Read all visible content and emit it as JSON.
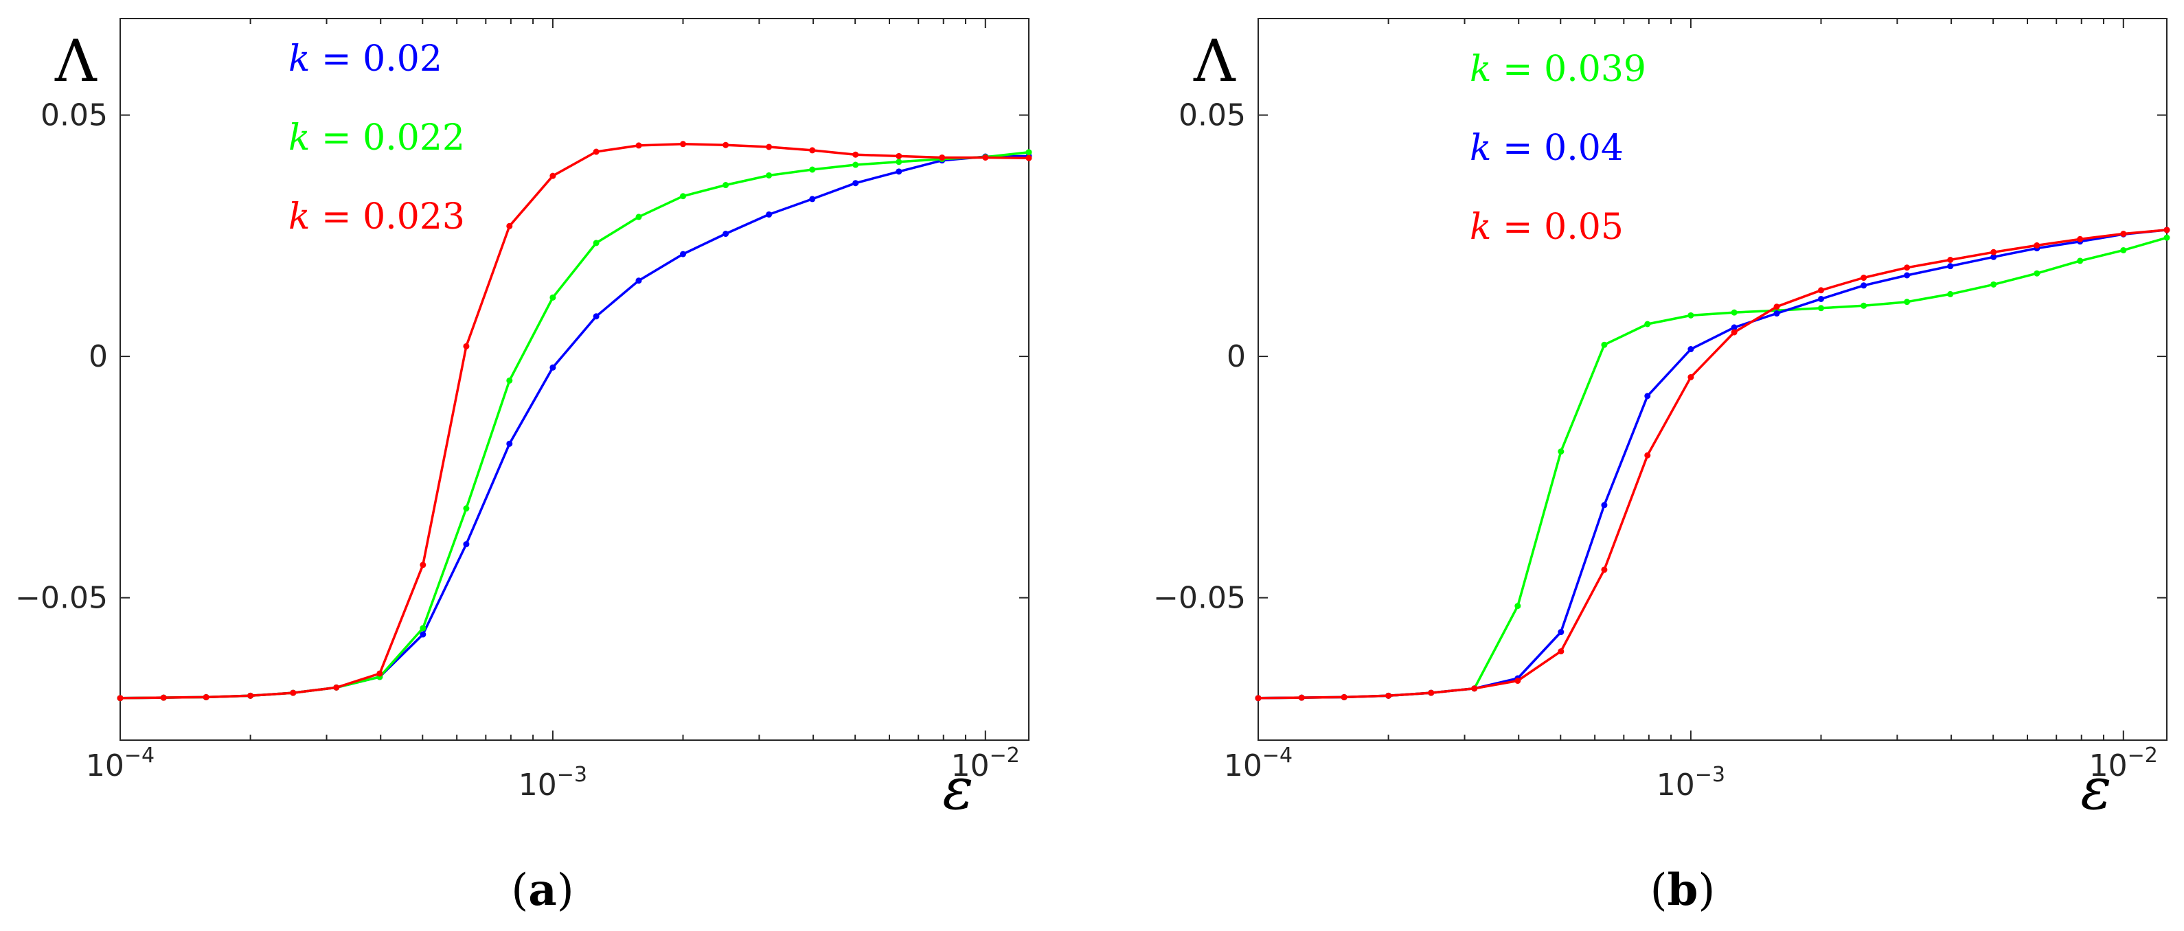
{
  "figure": {
    "panels": [
      {
        "label_open": "(",
        "label_letter": "a",
        "label_close": ")"
      },
      {
        "label_open": "(",
        "label_letter": "b",
        "label_close": ")"
      }
    ]
  },
  "chart_data": [
    {
      "type": "line",
      "panel": "a",
      "xlabel": "ε",
      "ylabel": "Λ",
      "xscale": "log",
      "xlim": [
        0.0001,
        0.0126
      ],
      "ylim": [
        -0.0795,
        0.07
      ],
      "xticks": [
        {
          "value": 0.0001,
          "base": "10",
          "exp": "−4"
        },
        {
          "value": 0.001,
          "base": "10",
          "exp": "−3"
        },
        {
          "value": 0.01,
          "base": "10",
          "exp": "−2"
        }
      ],
      "yticks": [
        {
          "value": 0.05,
          "label": "0.05"
        },
        {
          "value": 0,
          "label": "0"
        },
        {
          "value": -0.05,
          "label": "−0.05"
        }
      ],
      "legend_position": "top-left",
      "x": [
        0.0001,
        0.000126,
        0.000158,
        0.0002,
        0.000251,
        0.000316,
        0.000398,
        0.000501,
        0.000631,
        0.000794,
        0.001,
        0.00126,
        0.00158,
        0.002,
        0.00251,
        0.00316,
        0.00398,
        0.00501,
        0.00631,
        0.00794,
        0.01,
        0.0126
      ],
      "series": [
        {
          "name": "k = 0.02",
          "k_symbol": "k",
          "k_eq": " = 0.02",
          "color": "#0000ff",
          "values": [
            -0.0708,
            -0.0707,
            -0.0706,
            -0.0703,
            -0.0697,
            -0.0686,
            -0.0664,
            -0.0576,
            -0.0389,
            -0.0181,
            -0.0023,
            0.0083,
            0.0157,
            0.0212,
            0.0254,
            0.0294,
            0.0326,
            0.0359,
            0.0383,
            0.0406,
            0.0414,
            0.0415
          ]
        },
        {
          "name": "k = 0.022",
          "k_symbol": "k",
          "k_eq": " = 0.022",
          "color": "#00ff00",
          "values": [
            -0.0708,
            -0.0707,
            -0.0706,
            -0.0703,
            -0.0697,
            -0.0686,
            -0.0664,
            -0.0563,
            -0.0315,
            -0.005,
            0.0122,
            0.0235,
            0.0289,
            0.0332,
            0.0355,
            0.0375,
            0.0387,
            0.0397,
            0.0403,
            0.0409,
            0.0413,
            0.0423
          ]
        },
        {
          "name": "k = 0.023",
          "k_symbol": "k",
          "k_eq": " = 0.023",
          "color": "#ff0000",
          "values": [
            -0.0708,
            -0.0707,
            -0.0706,
            -0.0703,
            -0.0697,
            -0.0686,
            -0.0657,
            -0.0432,
            0.0021,
            0.027,
            0.0374,
            0.0424,
            0.0437,
            0.044,
            0.0438,
            0.0434,
            0.0427,
            0.0418,
            0.0415,
            0.0412,
            0.0412,
            0.0411
          ]
        }
      ]
    },
    {
      "type": "line",
      "panel": "b",
      "xlabel": "ε",
      "ylabel": "Λ",
      "xscale": "log",
      "xlim": [
        0.0001,
        0.0126
      ],
      "ylim": [
        -0.0795,
        0.07
      ],
      "xticks": [
        {
          "value": 0.0001,
          "base": "10",
          "exp": "−4"
        },
        {
          "value": 0.001,
          "base": "10",
          "exp": "−3"
        },
        {
          "value": 0.01,
          "base": "10",
          "exp": "−2"
        }
      ],
      "yticks": [
        {
          "value": 0.05,
          "label": "0.05"
        },
        {
          "value": 0,
          "label": "0"
        },
        {
          "value": -0.05,
          "label": "−0.05"
        }
      ],
      "legend_position": "top-left",
      "x": [
        0.0001,
        0.000126,
        0.000158,
        0.0002,
        0.000251,
        0.000316,
        0.000398,
        0.000501,
        0.000631,
        0.000794,
        0.001,
        0.00126,
        0.00158,
        0.002,
        0.00251,
        0.00316,
        0.00398,
        0.00501,
        0.00631,
        0.00794,
        0.01,
        0.0126
      ],
      "series": [
        {
          "name": "k = 0.039",
          "k_symbol": "k",
          "k_eq": " = 0.039",
          "color": "#00ff00",
          "values": [
            -0.0708,
            -0.0707,
            -0.0706,
            -0.0703,
            -0.0697,
            -0.0688,
            -0.0517,
            -0.0197,
            0.0024,
            0.0067,
            0.0085,
            0.0091,
            0.0095,
            0.01,
            0.0105,
            0.0113,
            0.0129,
            0.0149,
            0.0172,
            0.0198,
            0.022,
            0.0246
          ]
        },
        {
          "name": "k = 0.04",
          "k_symbol": "k",
          "k_eq": " = 0.04",
          "color": "#0000ff",
          "values": [
            -0.0708,
            -0.0707,
            -0.0706,
            -0.0703,
            -0.0697,
            -0.0688,
            -0.0667,
            -0.0571,
            -0.0308,
            -0.0082,
            0.0015,
            0.006,
            0.0089,
            0.0119,
            0.0147,
            0.0168,
            0.0187,
            0.0206,
            0.0224,
            0.0238,
            0.0253,
            0.0262
          ]
        },
        {
          "name": "k = 0.05",
          "k_symbol": "k",
          "k_eq": " = 0.05",
          "color": "#ff0000",
          "values": [
            -0.0708,
            -0.0707,
            -0.0706,
            -0.0703,
            -0.0697,
            -0.0688,
            -0.0672,
            -0.0611,
            -0.0442,
            -0.0205,
            -0.0043,
            0.005,
            0.0103,
            0.0137,
            0.0163,
            0.0184,
            0.02,
            0.0216,
            0.023,
            0.0243,
            0.0254,
            0.0262
          ]
        }
      ]
    }
  ]
}
